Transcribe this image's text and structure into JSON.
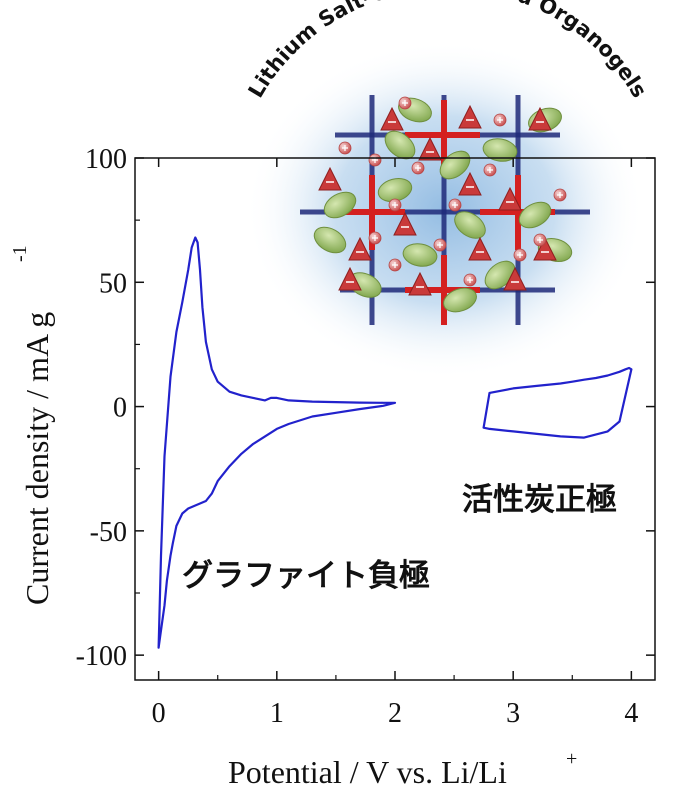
{
  "colors": {
    "curve": "#2222cc",
    "axis": "#111111",
    "network_red": "#d42020",
    "network_blue": "#1f2a7a",
    "glow": "#9cc3e6",
    "ion_red": "#c93a3a",
    "ion_green": "#9bbf6a"
  },
  "illustration": {
    "title_arc": "Lithium Salt-Concentrated Organogels"
  },
  "annotations": {
    "graphite_negative": "グラファイト負極",
    "activated_carbon_positive": "活性炭正極"
  },
  "chart_data": {
    "type": "line",
    "xlabel": "Potential / V vs. Li/Li",
    "xlabel_sup": "+",
    "ylabel": "Current density / mA g",
    "ylabel_sup": "-1",
    "xlim": [
      -0.2,
      4.2
    ],
    "ylim": [
      -110,
      100
    ],
    "x_ticks": [
      0,
      1,
      2,
      3,
      4
    ],
    "x_tick_labels": [
      "0",
      "1",
      "2",
      "3",
      "4"
    ],
    "y_ticks": [
      100,
      50,
      0,
      -50,
      -100
    ],
    "y_tick_labels": [
      "100",
      "50",
      "0",
      "-50",
      "-100"
    ],
    "grid": false,
    "series": [
      {
        "x": [
          0.0,
          0.02,
          0.05,
          0.1,
          0.15,
          0.2,
          0.25,
          0.28,
          0.31,
          0.33,
          0.35,
          0.37,
          0.4,
          0.45,
          0.5,
          0.6,
          0.7,
          0.8,
          0.9,
          0.95,
          1.0,
          1.1,
          1.3,
          1.5,
          1.7,
          1.9,
          2.0,
          1.9,
          1.7,
          1.5,
          1.3,
          1.1,
          1.0,
          0.9,
          0.8,
          0.7,
          0.6,
          0.5,
          0.45,
          0.4,
          0.35,
          0.3,
          0.25,
          0.2,
          0.15,
          0.12,
          0.1,
          0.07,
          0.05,
          0.02,
          0.0
        ],
        "y": [
          -97,
          -60,
          -20,
          12,
          30,
          42,
          55,
          64,
          68,
          66,
          55,
          40,
          26,
          15,
          10,
          6,
          4.5,
          3.5,
          2.5,
          3.5,
          3.5,
          2.5,
          2,
          1.8,
          1.6,
          1.5,
          1.5,
          0.3,
          -1,
          -2.5,
          -4,
          -7,
          -9,
          -12,
          -15,
          -19,
          -24,
          -30,
          -35,
          -38,
          -39,
          -40,
          -41,
          -43,
          -48,
          -55,
          -60,
          -70,
          -80,
          -90,
          -97
        ]
      },
      {
        "x": [
          2.75,
          2.8,
          3.0,
          3.2,
          3.4,
          3.6,
          3.8,
          3.9,
          4.0,
          3.98,
          3.95,
          3.9,
          3.8,
          3.7,
          3.6,
          3.5,
          3.4,
          3.2,
          3.0,
          2.8,
          2.75
        ],
        "y": [
          -8.5,
          -9,
          -10,
          -11,
          -12,
          -12.5,
          -10,
          -6,
          15,
          15.5,
          15,
          14,
          12.5,
          11.5,
          10.8,
          10,
          9.3,
          8.3,
          7.3,
          5.5,
          -8.5
        ]
      }
    ]
  }
}
